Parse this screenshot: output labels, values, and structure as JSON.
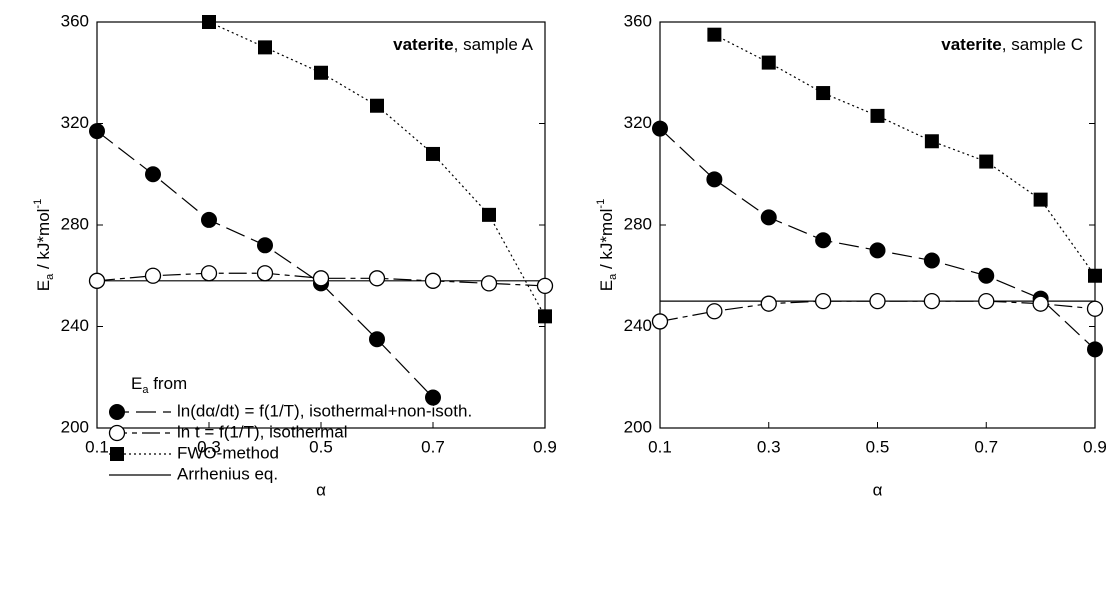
{
  "chart_data": [
    {
      "type": "line",
      "annotation": {
        "bold": "vaterite",
        "rest": ", sample A"
      },
      "xlabel": "α",
      "ylabel": {
        "main": "E",
        "sub": "a",
        "rest": "  /  kJ*mol",
        "sup": "-1"
      },
      "x": [
        0.1,
        0.2,
        0.3,
        0.4,
        0.5,
        0.6,
        0.7,
        0.8,
        0.9
      ],
      "xlim": [
        0.1,
        0.9
      ],
      "xticks": [
        0.1,
        0.3,
        0.5,
        0.7,
        0.9
      ],
      "ylim": [
        200,
        360
      ],
      "yticks": [
        200,
        240,
        280,
        320,
        360
      ],
      "legend": {
        "main": "E",
        "sub": "a",
        "rest": "  from"
      },
      "series": [
        {
          "name": "ln(dα/dt) = f(1/T), isothermal+non-isoth.",
          "marker": "filled-circle",
          "line": "dashed",
          "color": "#000000",
          "values": [
            317,
            300,
            282,
            272,
            257,
            235,
            212,
            null,
            null
          ]
        },
        {
          "name": "ln t  =  f(1/T), isothermal",
          "marker": "open-circle",
          "line": "dash-dot",
          "color": "#000000",
          "values": [
            258,
            260,
            261,
            261,
            259,
            259,
            258,
            257,
            256
          ]
        },
        {
          "name": "FWO-method",
          "marker": "square",
          "line": "dotted",
          "color": "#000000",
          "values": [
            null,
            null,
            360,
            350,
            340,
            327,
            308,
            284,
            244
          ]
        },
        {
          "name": "Arrhenius eq.",
          "marker": "none",
          "line": "solid",
          "color": "#000000",
          "value": 258
        }
      ]
    },
    {
      "type": "line",
      "annotation": {
        "bold": "vaterite",
        "rest": ", sample C"
      },
      "xlabel": "α",
      "ylabel": {
        "main": "E",
        "sub": "a",
        "rest": "  /  kJ*mol",
        "sup": "-1"
      },
      "x": [
        0.1,
        0.2,
        0.3,
        0.4,
        0.5,
        0.6,
        0.7,
        0.8,
        0.9
      ],
      "xlim": [
        0.1,
        0.9
      ],
      "xticks": [
        0.1,
        0.3,
        0.5,
        0.7,
        0.9
      ],
      "ylim": [
        200,
        360
      ],
      "yticks": [
        200,
        240,
        280,
        320,
        360
      ],
      "series": [
        {
          "marker": "filled-circle",
          "line": "dashed",
          "color": "#000000",
          "values": [
            318,
            298,
            283,
            274,
            270,
            266,
            260,
            251,
            231
          ]
        },
        {
          "marker": "open-circle",
          "line": "dash-dot",
          "color": "#000000",
          "values": [
            242,
            246,
            249,
            250,
            250,
            250,
            250,
            249,
            247
          ]
        },
        {
          "marker": "square",
          "line": "dotted",
          "color": "#000000",
          "values": [
            null,
            355,
            344,
            332,
            323,
            313,
            305,
            290,
            260
          ]
        },
        {
          "marker": "none",
          "line": "solid",
          "color": "#000000",
          "value": 250
        }
      ]
    }
  ]
}
